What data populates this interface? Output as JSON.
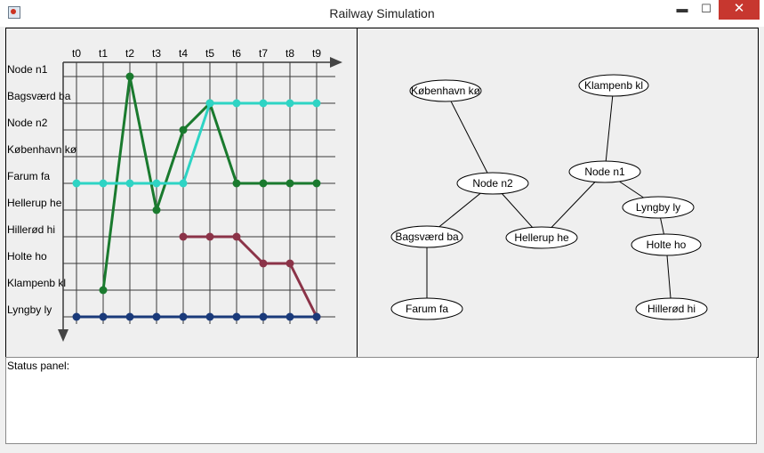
{
  "window": {
    "title": "Railway Simulation",
    "minimize_icon": "minimize-icon",
    "maximize_icon": "maximize-icon",
    "close_icon": "close-icon",
    "minimize_glyph": "▬",
    "maximize_glyph": "☐",
    "close_glyph": "✕"
  },
  "status": {
    "label": "Status panel:"
  },
  "chart_data": {
    "type": "line",
    "times": [
      "t0",
      "t1",
      "t2",
      "t3",
      "t4",
      "t5",
      "t6",
      "t7",
      "t8",
      "t9"
    ],
    "stations": [
      "Node n1",
      "Bagsværd ba",
      "Node n2",
      "København kø",
      "Farum fa",
      "Hellerup he",
      "Hillerød hi",
      "Holte ho",
      "Klampenb kl",
      "Lyngby ly"
    ],
    "series": [
      {
        "color": "#1a7a2e",
        "points": [
          [
            1,
            8
          ],
          [
            2,
            0
          ],
          [
            3,
            5
          ],
          [
            4,
            2
          ],
          [
            5,
            1
          ],
          [
            6,
            4
          ],
          [
            7,
            4
          ],
          [
            8,
            4
          ],
          [
            9,
            4
          ]
        ]
      },
      {
        "color": "#2ed4c4",
        "points": [
          [
            0,
            4
          ],
          [
            1,
            4
          ],
          [
            2,
            4
          ],
          [
            3,
            4
          ],
          [
            4,
            4
          ],
          [
            5,
            1
          ],
          [
            6,
            1
          ],
          [
            7,
            1
          ],
          [
            8,
            1
          ],
          [
            9,
            1
          ]
        ]
      },
      {
        "color": "#8b3348",
        "points": [
          [
            4,
            6
          ],
          [
            5,
            6
          ],
          [
            6,
            6
          ],
          [
            7,
            7
          ],
          [
            8,
            7
          ],
          [
            9,
            9
          ]
        ]
      },
      {
        "color": "#1a3a7a",
        "points": [
          [
            0,
            9
          ],
          [
            1,
            9
          ],
          [
            2,
            9
          ],
          [
            3,
            9
          ],
          [
            4,
            9
          ],
          [
            5,
            9
          ],
          [
            6,
            9
          ],
          [
            7,
            9
          ],
          [
            8,
            9
          ],
          [
            9,
            9
          ]
        ]
      }
    ]
  },
  "graph": {
    "nodes": [
      {
        "id": "kobenhavn",
        "label": "København kø"
      },
      {
        "id": "klampenb",
        "label": "Klampenb kl"
      },
      {
        "id": "n2",
        "label": "Node n2"
      },
      {
        "id": "n1",
        "label": "Node n1"
      },
      {
        "id": "lyngby",
        "label": "Lyngby ly"
      },
      {
        "id": "bagsvaerd",
        "label": "Bagsværd ba"
      },
      {
        "id": "hellerup",
        "label": "Hellerup he"
      },
      {
        "id": "holte",
        "label": "Holte ho"
      },
      {
        "id": "farum",
        "label": "Farum fa"
      },
      {
        "id": "hillerod",
        "label": "Hillerød hi"
      }
    ],
    "edges": [
      [
        "kobenhavn",
        "n2"
      ],
      [
        "n2",
        "bagsvaerd"
      ],
      [
        "n2",
        "hellerup"
      ],
      [
        "hellerup",
        "n1"
      ],
      [
        "klampenb",
        "n1"
      ],
      [
        "n1",
        "lyngby"
      ],
      [
        "lyngby",
        "holte"
      ],
      [
        "holte",
        "hillerod"
      ],
      [
        "bagsvaerd",
        "farum"
      ]
    ]
  }
}
